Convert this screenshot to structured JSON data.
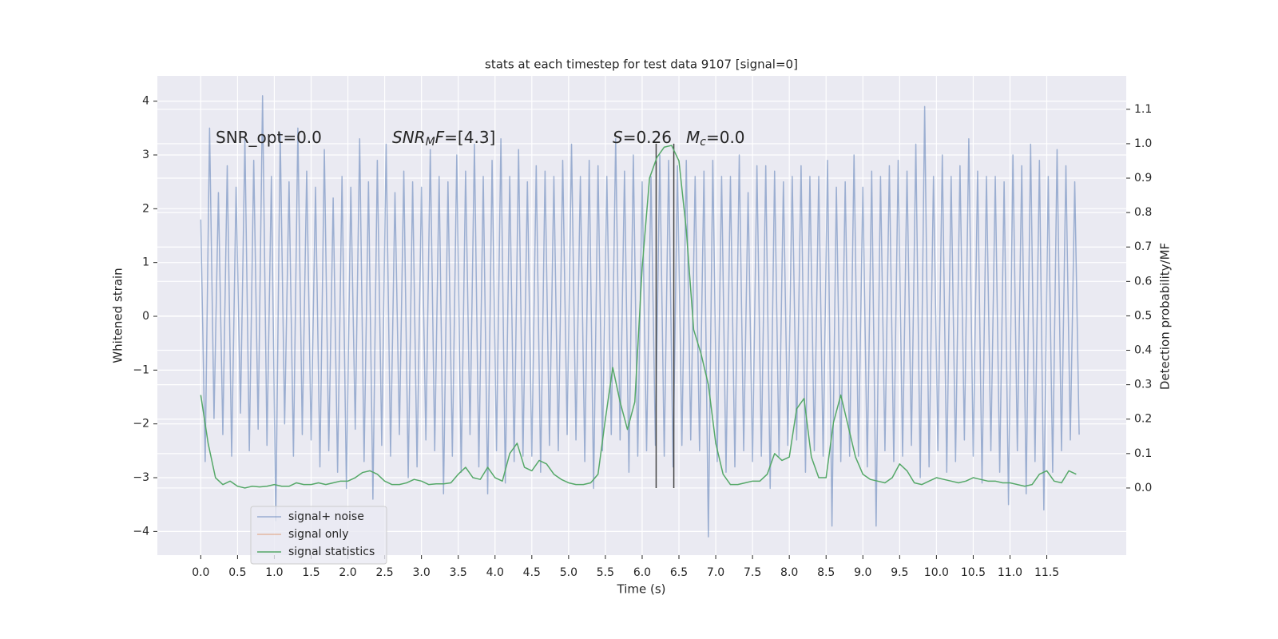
{
  "chart_data": {
    "type": "line",
    "title": "stats at each timestep for test data 9107 [signal=0]",
    "xlabel": "Time (s)",
    "ylabel": "Whitened strain",
    "y2label": "Detection probability/MF",
    "xlim": [
      -0.59,
      12.58
    ],
    "ylim": [
      -4.44,
      4.47
    ],
    "y2lim": [
      -0.195,
      1.197
    ],
    "xticks": [
      {
        "value": 0,
        "label": "0.0"
      },
      {
        "value": 0.5,
        "label": "0.5"
      },
      {
        "value": 1,
        "label": "1.0"
      },
      {
        "value": 1.5,
        "label": "1.5"
      },
      {
        "value": 2,
        "label": "2.0"
      },
      {
        "value": 2.5,
        "label": "2.5"
      },
      {
        "value": 3,
        "label": "3.0"
      },
      {
        "value": 3.5,
        "label": "3.5"
      },
      {
        "value": 4,
        "label": "4.0"
      },
      {
        "value": 4.5,
        "label": "4.5"
      },
      {
        "value": 5,
        "label": "5.0"
      },
      {
        "value": 5.5,
        "label": "5.5"
      },
      {
        "value": 6,
        "label": "6.0"
      },
      {
        "value": 6.5,
        "label": "6.5"
      },
      {
        "value": 7,
        "label": "7.0"
      },
      {
        "value": 7.5,
        "label": "7.5"
      },
      {
        "value": 8,
        "label": "8.0"
      },
      {
        "value": 8.5,
        "label": "8.5"
      },
      {
        "value": 9,
        "label": "9.0"
      },
      {
        "value": 9.5,
        "label": "9.5"
      },
      {
        "value": 10,
        "label": "10.0"
      },
      {
        "value": 10.5,
        "label": "10.5"
      },
      {
        "value": 11,
        "label": "11.0"
      },
      {
        "value": 11.5,
        "label": "11.5"
      }
    ],
    "yticks": [
      {
        "value": -4,
        "label": "−4"
      },
      {
        "value": -3,
        "label": "−3"
      },
      {
        "value": -2,
        "label": "−2"
      },
      {
        "value": -1,
        "label": "−1"
      },
      0,
      1,
      2,
      3,
      4
    ],
    "y2ticks": [
      {
        "value": 0,
        "label": "0.0"
      },
      {
        "value": 0.1,
        "label": "0.1"
      },
      {
        "value": 0.2,
        "label": "0.2"
      },
      {
        "value": 0.3,
        "label": "0.3"
      },
      {
        "value": 0.4,
        "label": "0.4"
      },
      {
        "value": 0.5,
        "label": "0.5"
      },
      {
        "value": 0.6,
        "label": "0.6"
      },
      {
        "value": 0.7,
        "label": "0.7"
      },
      {
        "value": 0.8,
        "label": "0.8"
      },
      {
        "value": 0.9,
        "label": "0.9"
      },
      {
        "value": 1,
        "label": "1.0"
      },
      {
        "value": 1.1,
        "label": "1.1"
      }
    ],
    "grid": true,
    "legend": "lower left",
    "series": [
      {
        "name": "signal+ noise",
        "color": "#4c72b0",
        "alpha": 0.5,
        "axis": "y",
        "x": [
          0,
          0.06,
          0.12,
          0.18,
          0.24,
          0.3,
          0.36,
          0.42,
          0.48,
          0.54,
          0.6,
          0.66,
          0.72,
          0.78,
          0.84,
          0.9,
          0.96,
          1.02,
          1.08,
          1.14,
          1.2,
          1.26,
          1.32,
          1.38,
          1.44,
          1.5,
          1.56,
          1.62,
          1.68,
          1.74,
          1.8,
          1.86,
          1.92,
          1.98,
          2.04,
          2.1,
          2.16,
          2.22,
          2.28,
          2.34,
          2.4,
          2.46,
          2.52,
          2.58,
          2.64,
          2.7,
          2.76,
          2.82,
          2.88,
          2.94,
          3,
          3.06,
          3.12,
          3.18,
          3.24,
          3.3,
          3.36,
          3.42,
          3.48,
          3.54,
          3.6,
          3.66,
          3.72,
          3.78,
          3.84,
          3.9,
          3.96,
          4.02,
          4.08,
          4.14,
          4.2,
          4.26,
          4.32,
          4.38,
          4.44,
          4.5,
          4.56,
          4.62,
          4.68,
          4.74,
          4.8,
          4.86,
          4.92,
          4.98,
          5.04,
          5.1,
          5.16,
          5.22,
          5.28,
          5.34,
          5.4,
          5.46,
          5.52,
          5.58,
          5.64,
          5.7,
          5.76,
          5.82,
          5.88,
          5.94,
          6,
          6.06,
          6.12,
          6.18,
          6.24,
          6.3,
          6.36,
          6.42,
          6.48,
          6.54,
          6.6,
          6.66,
          6.72,
          6.78,
          6.84,
          6.9,
          6.96,
          7.02,
          7.08,
          7.14,
          7.2,
          7.26,
          7.32,
          7.38,
          7.44,
          7.5,
          7.56,
          7.62,
          7.68,
          7.74,
          7.8,
          7.86,
          7.92,
          7.98,
          8.04,
          8.1,
          8.16,
          8.22,
          8.28,
          8.34,
          8.4,
          8.46,
          8.52,
          8.58,
          8.64,
          8.7,
          8.76,
          8.82,
          8.88,
          8.94,
          9,
          9.06,
          9.12,
          9.18,
          9.24,
          9.3,
          9.36,
          9.42,
          9.48,
          9.54,
          9.6,
          9.66,
          9.72,
          9.78,
          9.84,
          9.9,
          9.96,
          10.02,
          10.08,
          10.14,
          10.2,
          10.26,
          10.32,
          10.38,
          10.44,
          10.5,
          10.56,
          10.62,
          10.68,
          10.74,
          10.8,
          10.86,
          10.92,
          10.98,
          11.04,
          11.1,
          11.16,
          11.22,
          11.28,
          11.34,
          11.4,
          11.46,
          11.52,
          11.58,
          11.64,
          11.7,
          11.76,
          11.82,
          11.88,
          11.94
        ],
        "values": [
          1.8,
          -2.7,
          3.5,
          -1.9,
          2.3,
          -2.2,
          2.8,
          -2.6,
          2.4,
          -1.8,
          3.3,
          -2.5,
          2.9,
          -2.1,
          4.1,
          -2.4,
          2.6,
          -3.8,
          3.4,
          -2.0,
          2.5,
          -2.6,
          3.5,
          -2.2,
          2.7,
          -2.3,
          2.4,
          -2.8,
          3.1,
          -2.5,
          2.2,
          -2.9,
          2.6,
          -3.2,
          2.4,
          -2.1,
          3.3,
          -2.7,
          2.5,
          -3.4,
          2.9,
          -2.4,
          3.2,
          -2.6,
          2.3,
          -2.2,
          2.7,
          -3.0,
          2.5,
          -2.8,
          2.4,
          -2.3,
          3.1,
          -2.5,
          2.6,
          -3.3,
          2.5,
          -2.6,
          3.0,
          -2.9,
          2.7,
          -2.2,
          3.2,
          -2.8,
          2.6,
          -3.3,
          2.9,
          -2.5,
          3.3,
          -3.1,
          2.6,
          -2.7,
          3.1,
          -2.6,
          2.5,
          -2.6,
          2.8,
          -2.9,
          2.7,
          -2.4,
          2.6,
          -2.5,
          2.9,
          -2.2,
          3.2,
          -2.3,
          2.6,
          -2.7,
          2.9,
          -3.2,
          2.8,
          -2.5,
          2.6,
          -2.2,
          3.3,
          -2.3,
          2.7,
          -2.9,
          3.0,
          -2.6,
          2.5,
          -2.5,
          2.6,
          -2.4,
          3.0,
          -2.6,
          2.9,
          -2.8,
          2.8,
          -2.4,
          2.9,
          -2.3,
          2.6,
          -2.5,
          2.7,
          -4.1,
          2.9,
          -2.7,
          2.6,
          -2.9,
          2.6,
          -2.8,
          3.0,
          -2.5,
          2.3,
          -2.7,
          2.8,
          -2.6,
          2.8,
          -3.2,
          2.7,
          -2.6,
          2.5,
          -2.4,
          2.6,
          -2.3,
          2.8,
          -2.9,
          2.6,
          -2.5,
          2.6,
          -2.6,
          2.9,
          -3.9,
          2.4,
          -2.7,
          2.5,
          -2.6,
          3.0,
          -2.6,
          2.4,
          -2.8,
          2.7,
          -3.9,
          2.6,
          -2.5,
          2.8,
          -2.7,
          2.9,
          -2.6,
          2.7,
          -2.4,
          3.2,
          -3.0,
          3.9,
          -2.8,
          2.6,
          -2.5,
          3.0,
          -2.9,
          2.6,
          -2.7,
          2.8,
          -2.3,
          3.3,
          -2.6,
          2.7,
          -3.1,
          2.6,
          -2.5,
          2.6,
          -2.9,
          2.5,
          -3.5,
          3.0,
          -2.5,
          2.8,
          -3.3,
          3.2,
          -2.7,
          2.9,
          -3.6,
          2.6,
          -2.9,
          3.1,
          -2.5,
          2.8,
          -2.3,
          2.5,
          -2.2
        ]
      },
      {
        "name": "signal only",
        "color": "#dd8452",
        "alpha": 0.5,
        "axis": "y",
        "x": [],
        "values": []
      },
      {
        "name": "signal statistics",
        "color": "#55a868",
        "alpha": 1,
        "axis": "y2",
        "x": [
          0,
          0.1,
          0.2,
          0.3,
          0.4,
          0.5,
          0.6,
          0.7,
          0.8,
          0.9,
          1,
          1.1,
          1.2,
          1.3,
          1.4,
          1.5,
          1.6,
          1.7,
          1.8,
          1.9,
          2,
          2.1,
          2.2,
          2.3,
          2.4,
          2.5,
          2.6,
          2.7,
          2.8,
          2.9,
          3,
          3.1,
          3.2,
          3.3,
          3.4,
          3.5,
          3.6,
          3.7,
          3.8,
          3.9,
          4,
          4.1,
          4.2,
          4.3,
          4.4,
          4.5,
          4.6,
          4.7,
          4.8,
          4.9,
          5,
          5.1,
          5.2,
          5.3,
          5.4,
          5.5,
          5.6,
          5.7,
          5.8,
          5.9,
          6,
          6.1,
          6.2,
          6.3,
          6.4,
          6.5,
          6.6,
          6.7,
          6.8,
          6.9,
          7,
          7.1,
          7.2,
          7.3,
          7.4,
          7.5,
          7.6,
          7.7,
          7.8,
          7.9,
          8,
          8.1,
          8.2,
          8.3,
          8.4,
          8.5,
          8.6,
          8.7,
          8.8,
          8.9,
          9,
          9.1,
          9.2,
          9.3,
          9.4,
          9.5,
          9.6,
          9.7,
          9.8,
          9.9,
          10,
          10.1,
          10.2,
          10.3,
          10.4,
          10.5,
          10.6,
          10.7,
          10.8,
          10.9,
          11,
          11.1,
          11.2,
          11.3,
          11.4,
          11.5,
          11.6,
          11.7,
          11.8,
          11.9
        ],
        "values": [
          0.27,
          0.13,
          0.03,
          0.01,
          0.02,
          0.005,
          0,
          0.005,
          0.003,
          0.005,
          0.01,
          0.005,
          0.005,
          0.015,
          0.01,
          0.01,
          0.015,
          0.01,
          0.015,
          0.02,
          0.02,
          0.03,
          0.045,
          0.05,
          0.04,
          0.02,
          0.01,
          0.01,
          0.015,
          0.025,
          0.02,
          0.01,
          0.012,
          0.012,
          0.015,
          0.04,
          0.06,
          0.03,
          0.025,
          0.06,
          0.03,
          0.02,
          0.1,
          0.13,
          0.06,
          0.05,
          0.08,
          0.07,
          0.04,
          0.025,
          0.015,
          0.01,
          0.01,
          0.015,
          0.04,
          0.2,
          0.35,
          0.25,
          0.17,
          0.25,
          0.64,
          0.9,
          0.96,
          0.99,
          0.995,
          0.95,
          0.75,
          0.46,
          0.39,
          0.3,
          0.13,
          0.04,
          0.01,
          0.01,
          0.015,
          0.02,
          0.02,
          0.04,
          0.1,
          0.08,
          0.09,
          0.23,
          0.26,
          0.09,
          0.03,
          0.03,
          0.19,
          0.27,
          0.18,
          0.09,
          0.04,
          0.025,
          0.02,
          0.015,
          0.03,
          0.07,
          0.05,
          0.015,
          0.01,
          0.02,
          0.03,
          0.025,
          0.02,
          0.015,
          0.02,
          0.03,
          0.025,
          0.02,
          0.02,
          0.015,
          0.015,
          0.01,
          0.005,
          0.01,
          0.04,
          0.05,
          0.02,
          0.015,
          0.05,
          0.04
        ]
      }
    ],
    "vlines": {
      "x": [
        6.19,
        6.43
      ],
      "ymin": 0,
      "ymax": 1,
      "axis": "y2",
      "color": "#444444"
    },
    "annotations": [
      {
        "parts": [
          {
            "text": "SNR_opt=0.0",
            "style": "normal"
          }
        ]
      },
      {
        "parts": [
          {
            "text": "SNR",
            "style": "italic"
          },
          {
            "text": "M",
            "style": "sub"
          },
          {
            "text": "F",
            "style": "italic"
          },
          {
            "text": "=[4.3]",
            "style": "normal"
          }
        ]
      },
      {
        "parts": [
          {
            "text": "S",
            "style": "italic"
          },
          {
            "text": "=0.26",
            "style": "normal"
          }
        ]
      },
      {
        "parts": [
          {
            "text": "M",
            "style": "italic"
          },
          {
            "text": "c",
            "style": "sub"
          },
          {
            "text": "=0.0",
            "style": "normal"
          }
        ]
      }
    ]
  }
}
